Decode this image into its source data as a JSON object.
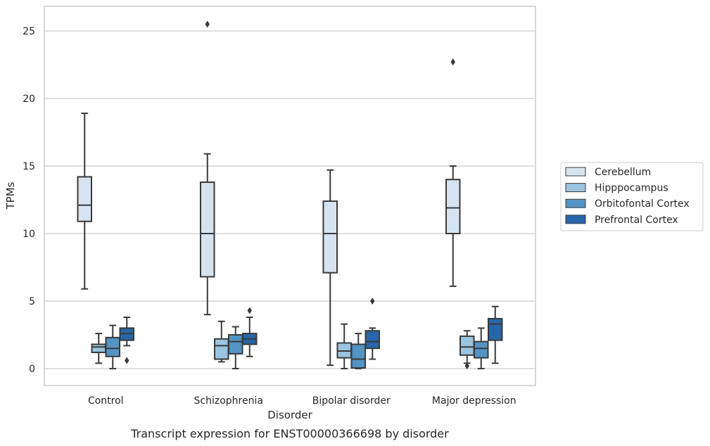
{
  "chart_data": {
    "type": "box",
    "title": "",
    "caption": "Transcript expression for ENST00000366698 by disorder",
    "xlabel": "Disorder",
    "ylabel": "TPMs",
    "ylim": [
      -1.2,
      26.8
    ],
    "yticks": [
      0,
      5,
      10,
      15,
      20,
      25
    ],
    "grid": "horizontal",
    "legend_position": "right",
    "categories": [
      "Control",
      "Schizophrenia",
      "Bipolar disorder",
      "Major depression"
    ],
    "series": [
      {
        "name": "Cerebellum",
        "color": "#d6e4f1",
        "boxes": [
          {
            "whisker_low": 5.9,
            "q1": 10.9,
            "median": 12.1,
            "q3": 14.2,
            "whisker_high": 18.9,
            "outliers": []
          },
          {
            "whisker_low": 4.0,
            "q1": 6.8,
            "median": 10.0,
            "q3": 13.8,
            "whisker_high": 15.9,
            "outliers": [
              25.5
            ]
          },
          {
            "whisker_low": 0.25,
            "q1": 7.1,
            "median": 10.0,
            "q3": 12.4,
            "whisker_high": 14.7,
            "outliers": []
          },
          {
            "whisker_low": 6.1,
            "q1": 10.0,
            "median": 11.9,
            "q3": 14.0,
            "whisker_high": 15.0,
            "outliers": [
              22.7
            ]
          }
        ]
      },
      {
        "name": "Hipppocampus",
        "color": "#9ac4df",
        "boxes": [
          {
            "whisker_low": 0.4,
            "q1": 1.2,
            "median": 1.6,
            "q3": 1.8,
            "whisker_high": 2.6,
            "outliers": []
          },
          {
            "whisker_low": 0.5,
            "q1": 0.7,
            "median": 1.7,
            "q3": 2.2,
            "whisker_high": 3.5,
            "outliers": []
          },
          {
            "whisker_low": 0.0,
            "q1": 0.8,
            "median": 1.3,
            "q3": 1.9,
            "whisker_high": 3.3,
            "outliers": []
          },
          {
            "whisker_low": 0.4,
            "q1": 1.0,
            "median": 1.6,
            "q3": 2.4,
            "whisker_high": 2.8,
            "outliers": [
              0.2
            ]
          }
        ]
      },
      {
        "name": "Orbitofontal Cortex",
        "color": "#5394c4",
        "boxes": [
          {
            "whisker_low": 0.0,
            "q1": 0.9,
            "median": 1.5,
            "q3": 2.3,
            "whisker_high": 3.2,
            "outliers": []
          },
          {
            "whisker_low": 0.0,
            "q1": 1.1,
            "median": 2.0,
            "q3": 2.5,
            "whisker_high": 3.1,
            "outliers": []
          },
          {
            "whisker_low": 0.0,
            "q1": 0.05,
            "median": 0.7,
            "q3": 1.8,
            "whisker_high": 2.6,
            "outliers": []
          },
          {
            "whisker_low": 0.0,
            "q1": 0.8,
            "median": 1.5,
            "q3": 2.0,
            "whisker_high": 3.0,
            "outliers": []
          }
        ]
      },
      {
        "name": "Prefrontal Cortex",
        "color": "#2767a9",
        "boxes": [
          {
            "whisker_low": 1.7,
            "q1": 2.1,
            "median": 2.6,
            "q3": 3.0,
            "whisker_high": 3.8,
            "outliers": [
              0.6
            ]
          },
          {
            "whisker_low": 0.9,
            "q1": 1.8,
            "median": 2.2,
            "q3": 2.6,
            "whisker_high": 3.8,
            "outliers": [
              4.3
            ]
          },
          {
            "whisker_low": 0.7,
            "q1": 1.5,
            "median": 2.0,
            "q3": 2.8,
            "whisker_high": 3.0,
            "outliers": [
              5.0
            ]
          },
          {
            "whisker_low": 0.4,
            "q1": 2.1,
            "median": 3.3,
            "q3": 3.7,
            "whisker_high": 4.6,
            "outliers": []
          }
        ]
      }
    ]
  }
}
